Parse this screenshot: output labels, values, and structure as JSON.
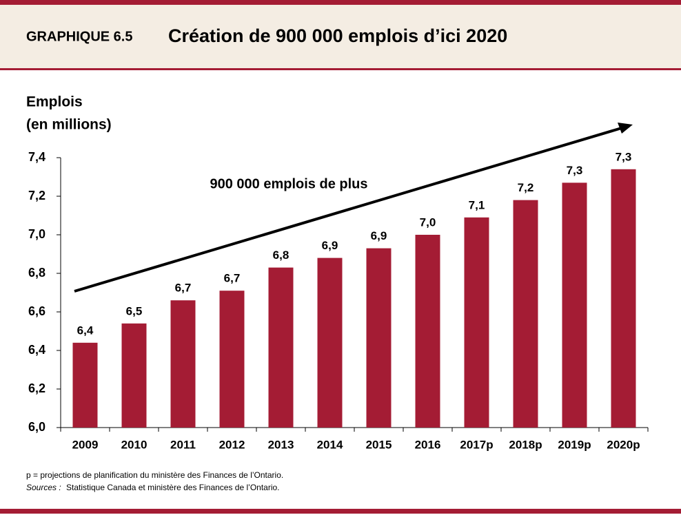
{
  "header": {
    "label": "GRAPHIQUE 6.5"
  },
  "chart_data": {
    "type": "bar",
    "title": "Création de 900 000 emplois d’ici 2020",
    "y_label": [
      "Emplois",
      "(en millions)"
    ],
    "annotation": "900 000 emplois de plus",
    "categories": [
      "2009",
      "2010",
      "2011",
      "2012",
      "2013",
      "2014",
      "2015",
      "2016",
      "2017p",
      "2018p",
      "2019p",
      "2020p"
    ],
    "values": [
      6.44,
      6.54,
      6.66,
      6.71,
      6.83,
      6.88,
      6.93,
      7.0,
      7.09,
      7.18,
      7.27,
      7.34
    ],
    "value_labels": [
      "6,4",
      "6,5",
      "6,7",
      "6,7",
      "6,8",
      "6,9",
      "6,9",
      "7,0",
      "7,1",
      "7,2",
      "7,3",
      "7,3"
    ],
    "color": "#a41c34",
    "ylim": [
      6.0,
      7.4
    ],
    "yticks": [
      {
        "value": 6.0,
        "label": "6,0"
      },
      {
        "value": 6.2,
        "label": "6,2"
      },
      {
        "value": 6.4,
        "label": "6,4"
      },
      {
        "value": 6.6,
        "label": "6,6"
      },
      {
        "value": 6.8,
        "label": "6,8"
      },
      {
        "value": 7.0,
        "label": "7,0"
      },
      {
        "value": 7.2,
        "label": "7,2"
      },
      {
        "value": 7.4,
        "label": "7,4"
      }
    ],
    "grid": false
  },
  "footnotes": {
    "note": "p = projections de planification du ministère des Finances de l’Ontario.",
    "sources_label": "Sources :",
    "sources": "Statistique Canada et ministère des Finances de l’Ontario."
  }
}
